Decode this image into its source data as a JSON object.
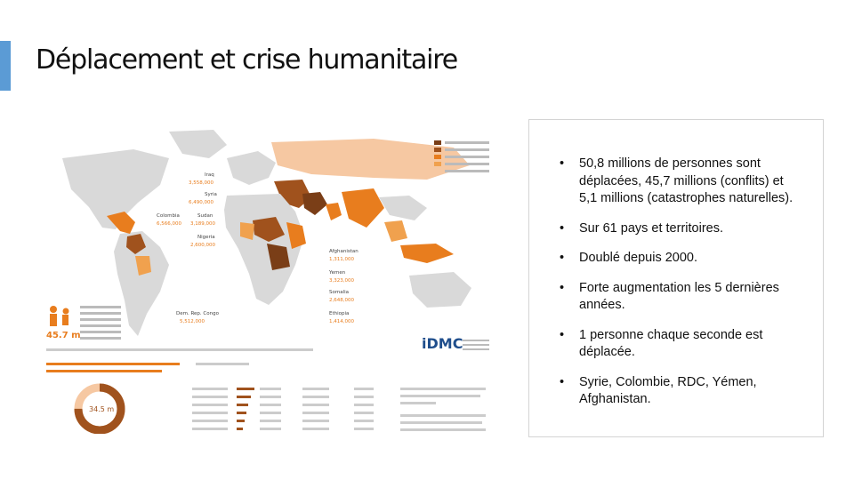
{
  "slide": {
    "title": "Déplacement et crise humanitaire",
    "accent_color": "#5b9bd5",
    "bullet_glyph": "•",
    "bullets": [
      "50,8 millions de personnes sont déplacées, 45,7 millions (conflits) et 5,1 millions (catastrophes naturelles).",
      "Sur 61 pays et territoires.",
      "Doublé depuis 2000.",
      "Forte augmentation les 5 dernières années.",
      "1 personne chaque seconde est déplacée.",
      "Syrie, Colombie, RDC, Yémen, Afghanistan."
    ]
  },
  "infographic": {
    "brand": "iDMC",
    "total_figure": "45.7 m",
    "donut_figure": "34.5 m",
    "colors": {
      "light": "#f6c8a2",
      "mid": "#f0a14e",
      "orange": "#e87d1e",
      "dark": "#a0521d",
      "darkest": "#7a3e17",
      "land": "#d9d9d9"
    },
    "callouts": [
      {
        "country": "Iraq",
        "figure": "3,558,000"
      },
      {
        "country": "Syria",
        "figure": "6,490,000"
      },
      {
        "country": "Colombia",
        "figure": "6,566,000"
      },
      {
        "country": "Sudan",
        "figure": "3,189,000"
      },
      {
        "country": "Nigeria",
        "figure": "2,600,000"
      },
      {
        "country": "Afghanistan",
        "figure": "1,311,000"
      },
      {
        "country": "Yemen",
        "figure": "3,323,000"
      },
      {
        "country": "Somalia",
        "figure": "2,648,000"
      },
      {
        "country": "Ethiopia",
        "figure": "1,414,000"
      },
      {
        "country": "Dem. Rep. Congo",
        "figure": "5,512,000"
      }
    ]
  }
}
